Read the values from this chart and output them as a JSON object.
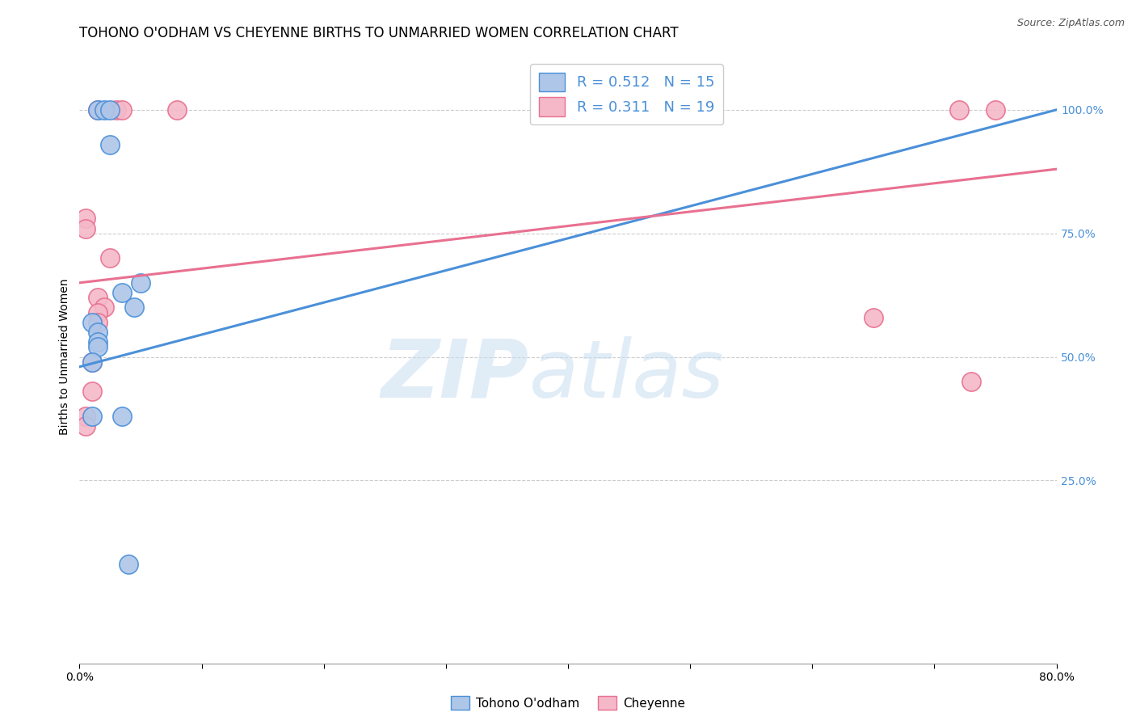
{
  "title": "TOHONO O'ODHAM VS CHEYENNE BIRTHS TO UNMARRIED WOMEN CORRELATION CHART",
  "source": "Source: ZipAtlas.com",
  "ylabel": "Births to Unmarried Women",
  "xlim": [
    0.0,
    80.0
  ],
  "ylim": [
    -12.0,
    112.0
  ],
  "blue_R": 0.512,
  "blue_N": 15,
  "pink_R": 0.311,
  "pink_N": 19,
  "blue_color": "#aec6e8",
  "pink_color": "#f4b8c8",
  "blue_line_color": "#4a90d9",
  "pink_line_color": "#e87090",
  "legend_label_blue": "Tohono O'odham",
  "legend_label_pink": "Cheyenne",
  "watermark_zip": "ZIP",
  "watermark_atlas": "atlas",
  "blue_points": [
    [
      1.5,
      100.0
    ],
    [
      2.0,
      100.0
    ],
    [
      2.5,
      100.0
    ],
    [
      2.5,
      93.0
    ],
    [
      5.0,
      65.0
    ],
    [
      3.5,
      63.0
    ],
    [
      4.5,
      60.0
    ],
    [
      1.0,
      57.0
    ],
    [
      1.5,
      55.0
    ],
    [
      1.5,
      53.0
    ],
    [
      1.5,
      52.0
    ],
    [
      1.0,
      49.0
    ],
    [
      1.0,
      38.0
    ],
    [
      3.5,
      38.0
    ],
    [
      4.0,
      8.0
    ]
  ],
  "pink_points": [
    [
      1.5,
      100.0
    ],
    [
      3.0,
      100.0
    ],
    [
      3.5,
      100.0
    ],
    [
      8.0,
      100.0
    ],
    [
      72.0,
      100.0
    ],
    [
      75.0,
      100.0
    ],
    [
      0.5,
      78.0
    ],
    [
      0.5,
      76.0
    ],
    [
      2.5,
      70.0
    ],
    [
      1.5,
      62.0
    ],
    [
      2.0,
      60.0
    ],
    [
      1.5,
      59.0
    ],
    [
      1.5,
      57.0
    ],
    [
      1.0,
      49.0
    ],
    [
      1.0,
      43.0
    ],
    [
      65.0,
      58.0
    ],
    [
      73.0,
      45.0
    ],
    [
      0.5,
      38.0
    ],
    [
      0.5,
      36.0
    ]
  ],
  "blue_line_x": [
    0.0,
    80.0
  ],
  "blue_line_y": [
    48.0,
    100.0
  ],
  "pink_line_x": [
    0.0,
    80.0
  ],
  "pink_line_y": [
    65.0,
    88.0
  ],
  "title_fontsize": 12,
  "axis_label_fontsize": 10,
  "tick_fontsize": 10,
  "background_color": "#ffffff",
  "grid_color": "#cccccc"
}
